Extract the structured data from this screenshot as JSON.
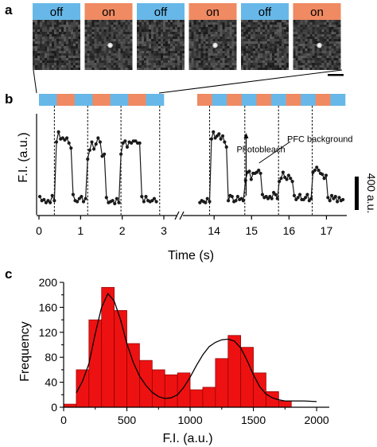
{
  "panels": {
    "a": "a",
    "b": "b",
    "c": "c"
  },
  "colors": {
    "on": "#ef8a62",
    "off": "#67b8e8",
    "hist_fill": "#ee1111",
    "hist_stroke": "#8b0000",
    "trace": "#1a1a1a"
  },
  "frames": [
    {
      "label": "off",
      "state": "off"
    },
    {
      "label": "on",
      "state": "on"
    },
    {
      "label": "off",
      "state": "off"
    },
    {
      "label": "on",
      "state": "on"
    },
    {
      "label": "off",
      "state": "off"
    },
    {
      "label": "on",
      "state": "on"
    }
  ],
  "chart_data": [
    {
      "type": "line",
      "panel": "b",
      "xlabel": "Time (s)",
      "ylabel": "F.I. (a.u.)",
      "scale_bar_label": "400 a.u.",
      "x_axis_break": true,
      "segments": [
        {
          "xlim": [
            0,
            3
          ],
          "xticks": [
            0,
            1,
            2,
            3
          ],
          "state_bands": [
            "off",
            "on",
            "off",
            "on",
            "off",
            "on",
            "off"
          ],
          "dashed_lines": [
            0.37,
            1.17,
            1.97,
            2.9
          ],
          "points": [
            [
              0.02,
              0.18
            ],
            [
              0.07,
              0.14
            ],
            [
              0.12,
              0.15
            ],
            [
              0.17,
              0.12
            ],
            [
              0.22,
              0.14
            ],
            [
              0.27,
              0.12
            ],
            [
              0.32,
              0.19
            ],
            [
              0.37,
              0.14
            ],
            [
              0.42,
              0.72
            ],
            [
              0.47,
              0.82
            ],
            [
              0.52,
              0.75
            ],
            [
              0.57,
              0.76
            ],
            [
              0.62,
              0.74
            ],
            [
              0.67,
              0.76
            ],
            [
              0.72,
              0.71
            ],
            [
              0.77,
              0.66
            ],
            [
              0.82,
              0.2
            ],
            [
              0.87,
              0.14
            ],
            [
              0.92,
              0.13
            ],
            [
              0.97,
              0.16
            ],
            [
              1.02,
              0.18
            ],
            [
              1.07,
              0.13
            ],
            [
              1.12,
              0.16
            ],
            [
              1.17,
              0.55
            ],
            [
              1.22,
              0.64
            ],
            [
              1.27,
              0.72
            ],
            [
              1.32,
              0.65
            ],
            [
              1.37,
              0.7
            ],
            [
              1.42,
              0.76
            ],
            [
              1.47,
              0.72
            ],
            [
              1.52,
              0.58
            ],
            [
              1.57,
              0.6
            ],
            [
              1.62,
              0.17
            ],
            [
              1.67,
              0.12
            ],
            [
              1.72,
              0.13
            ],
            [
              1.77,
              0.14
            ],
            [
              1.82,
              0.11
            ],
            [
              1.87,
              0.16
            ],
            [
              1.92,
              0.12
            ],
            [
              1.97,
              0.6
            ],
            [
              2.02,
              0.71
            ],
            [
              2.07,
              0.73
            ],
            [
              2.12,
              0.67
            ],
            [
              2.17,
              0.72
            ],
            [
              2.22,
              0.71
            ],
            [
              2.27,
              0.73
            ],
            [
              2.32,
              0.73
            ],
            [
              2.37,
              0.71
            ],
            [
              2.42,
              0.71
            ],
            [
              2.47,
              0.18
            ],
            [
              2.52,
              0.13
            ],
            [
              2.57,
              0.18
            ],
            [
              2.62,
              0.14
            ],
            [
              2.67,
              0.13
            ],
            [
              2.72,
              0.14
            ],
            [
              2.77,
              0.16
            ],
            [
              2.82,
              0.13
            ]
          ]
        },
        {
          "xlim": [
            13.55,
            17.5
          ],
          "xticks": [
            14,
            15,
            16,
            17
          ],
          "state_bands": [
            "on",
            "off",
            "on",
            "off",
            "on",
            "off",
            "on",
            "off",
            "on",
            "off"
          ],
          "dashed_lines": [
            13.88,
            14.82,
            15.72,
            16.62
          ],
          "points": [
            [
              13.62,
              0.12
            ],
            [
              13.67,
              0.14
            ],
            [
              13.72,
              0.13
            ],
            [
              13.77,
              0.12
            ],
            [
              13.82,
              0.16
            ],
            [
              13.88,
              0.13
            ],
            [
              13.93,
              0.75
            ],
            [
              13.98,
              0.82
            ],
            [
              14.03,
              0.76
            ],
            [
              14.08,
              0.78
            ],
            [
              14.13,
              0.8
            ],
            [
              14.18,
              0.75
            ],
            [
              14.23,
              0.78
            ],
            [
              14.28,
              0.72
            ],
            [
              14.33,
              0.67
            ],
            [
              14.38,
              0.14
            ],
            [
              14.43,
              0.19
            ],
            [
              14.48,
              0.18
            ],
            [
              14.53,
              0.13
            ],
            [
              14.58,
              0.14
            ],
            [
              14.63,
              0.18
            ],
            [
              14.68,
              0.15
            ],
            [
              14.73,
              0.16
            ],
            [
              14.78,
              0.14
            ],
            [
              14.84,
              0.34
            ],
            [
              14.89,
              0.42
            ],
            [
              14.94,
              0.43
            ],
            [
              14.99,
              0.35
            ],
            [
              15.04,
              0.41
            ],
            [
              15.09,
              0.41
            ],
            [
              15.14,
              0.42
            ],
            [
              15.19,
              0.44
            ],
            [
              15.24,
              0.41
            ],
            [
              15.29,
              0.2
            ],
            [
              15.34,
              0.17
            ],
            [
              15.39,
              0.18
            ],
            [
              15.44,
              0.16
            ],
            [
              15.49,
              0.18
            ],
            [
              15.54,
              0.16
            ],
            [
              15.59,
              0.22
            ],
            [
              15.64,
              0.2
            ],
            [
              15.69,
              0.16
            ],
            [
              15.74,
              0.33
            ],
            [
              15.79,
              0.36
            ],
            [
              15.84,
              0.42
            ],
            [
              15.89,
              0.37
            ],
            [
              15.94,
              0.35
            ],
            [
              15.99,
              0.39
            ],
            [
              16.04,
              0.36
            ],
            [
              16.09,
              0.33
            ],
            [
              16.14,
              0.19
            ],
            [
              16.19,
              0.15
            ],
            [
              16.24,
              0.17
            ],
            [
              16.29,
              0.2
            ],
            [
              16.34,
              0.15
            ],
            [
              16.39,
              0.15
            ],
            [
              16.44,
              0.17
            ],
            [
              16.49,
              0.2
            ],
            [
              16.54,
              0.14
            ],
            [
              16.59,
              0.16
            ],
            [
              16.64,
              0.42
            ],
            [
              16.69,
              0.44
            ],
            [
              16.74,
              0.47
            ],
            [
              16.79,
              0.44
            ],
            [
              16.84,
              0.41
            ],
            [
              16.89,
              0.4
            ],
            [
              16.94,
              0.36
            ],
            [
              16.99,
              0.39
            ],
            [
              17.04,
              0.17
            ],
            [
              17.09,
              0.14
            ],
            [
              17.14,
              0.19
            ],
            [
              17.19,
              0.16
            ],
            [
              17.24,
              0.18
            ],
            [
              17.29,
              0.13
            ],
            [
              17.34,
              0.17
            ],
            [
              17.39,
              0.14
            ],
            [
              17.44,
              0.15
            ]
          ]
        }
      ],
      "annotations": [
        {
          "text": "Photobleach",
          "x": 14.6,
          "y": 0.62,
          "arrow_to": [
            14.6,
            0.17
          ]
        },
        {
          "text": "PFC background",
          "x": 15.95,
          "y": 0.72,
          "arrow_to": [
            15.15,
            0.44
          ]
        }
      ]
    },
    {
      "type": "bar",
      "panel": "c",
      "xlabel": "F.I. (a.u.)",
      "ylabel": "Frequency",
      "xlim": [
        0,
        2100
      ],
      "ylim": [
        0,
        200
      ],
      "xticks": [
        0,
        500,
        1000,
        1500,
        2000
      ],
      "yticks": [
        0,
        20,
        40,
        60,
        80,
        100,
        120,
        140,
        160,
        180,
        200
      ],
      "yticklabels": [
        "0",
        "",
        "40",
        "",
        "80",
        "",
        "120",
        "",
        "160",
        "",
        "200"
      ],
      "bin_width": 100,
      "bins": [
        {
          "x": 0,
          "value": 5
        },
        {
          "x": 100,
          "value": 60
        },
        {
          "x": 200,
          "value": 140
        },
        {
          "x": 300,
          "value": 192
        },
        {
          "x": 400,
          "value": 155
        },
        {
          "x": 500,
          "value": 102
        },
        {
          "x": 600,
          "value": 75
        },
        {
          "x": 700,
          "value": 60
        },
        {
          "x": 800,
          "value": 52
        },
        {
          "x": 900,
          "value": 55
        },
        {
          "x": 1000,
          "value": 28
        },
        {
          "x": 1100,
          "value": 32
        },
        {
          "x": 1200,
          "value": 78
        },
        {
          "x": 1300,
          "value": 115
        },
        {
          "x": 1400,
          "value": 96
        },
        {
          "x": 1500,
          "value": 55
        },
        {
          "x": 1600,
          "value": 25
        },
        {
          "x": 1700,
          "value": 10
        }
      ],
      "fit_curve": [
        [
          100,
          23
        ],
        [
          150,
          42
        ],
        [
          200,
          70
        ],
        [
          250,
          118
        ],
        [
          300,
          160
        ],
        [
          350,
          182
        ],
        [
          400,
          170
        ],
        [
          450,
          140
        ],
        [
          500,
          102
        ],
        [
          550,
          72
        ],
        [
          600,
          50
        ],
        [
          650,
          35
        ],
        [
          700,
          24
        ],
        [
          750,
          17
        ],
        [
          800,
          14
        ],
        [
          850,
          15
        ],
        [
          900,
          20
        ],
        [
          950,
          32
        ],
        [
          1000,
          48
        ],
        [
          1050,
          67
        ],
        [
          1100,
          84
        ],
        [
          1150,
          97
        ],
        [
          1200,
          104
        ],
        [
          1250,
          108
        ],
        [
          1300,
          109
        ],
        [
          1350,
          106
        ],
        [
          1400,
          95
        ],
        [
          1450,
          75
        ],
        [
          1500,
          52
        ],
        [
          1550,
          33
        ],
        [
          1600,
          21
        ],
        [
          1650,
          15
        ],
        [
          1700,
          12
        ],
        [
          1750,
          10
        ],
        [
          1800,
          10
        ],
        [
          1900,
          10
        ],
        [
          2000,
          9
        ]
      ]
    }
  ]
}
